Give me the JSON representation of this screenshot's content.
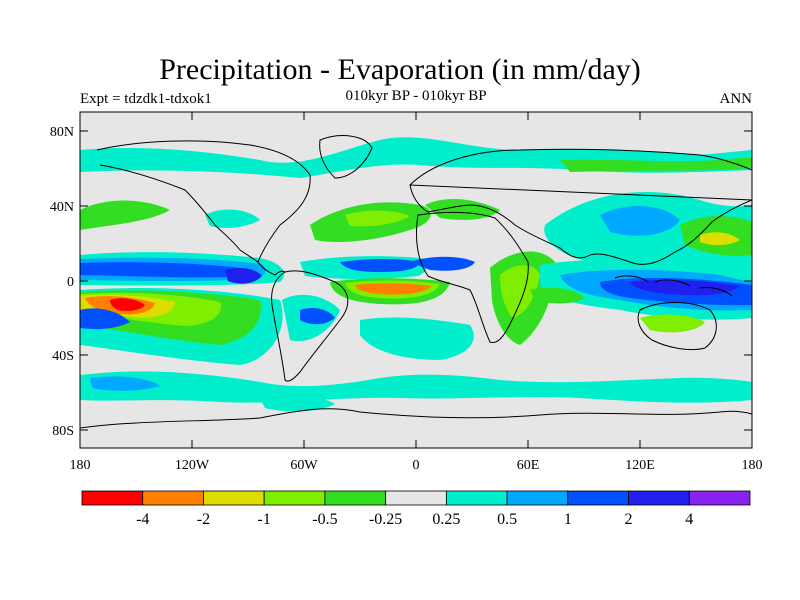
{
  "title": "Precipitation - Evaporation (in mm/day)",
  "subtitle": "010kyr BP - 010kyr BP",
  "left_label": "Expt = tdzdk1-tdxok1",
  "right_label": "ANN",
  "map": {
    "lat_ticks": [
      "80N",
      "40N",
      "0",
      "40S",
      "80S"
    ],
    "lon_ticks": [
      "180",
      "120W",
      "60W",
      "0",
      "60E",
      "120E",
      "180"
    ]
  },
  "colorbar": {
    "colors": [
      "#ff0000",
      "#ff8000",
      "#dddd00",
      "#80ee00",
      "#33dd22",
      "#e6e6e6",
      "#00eecc",
      "#00a8ff",
      "#0050ff",
      "#2020ee",
      "#8822ee"
    ],
    "labels": [
      "-4",
      "-2",
      "-1",
      "-0.5",
      "-0.25",
      "0.25",
      "0.5",
      "1",
      "2",
      "4"
    ]
  }
}
